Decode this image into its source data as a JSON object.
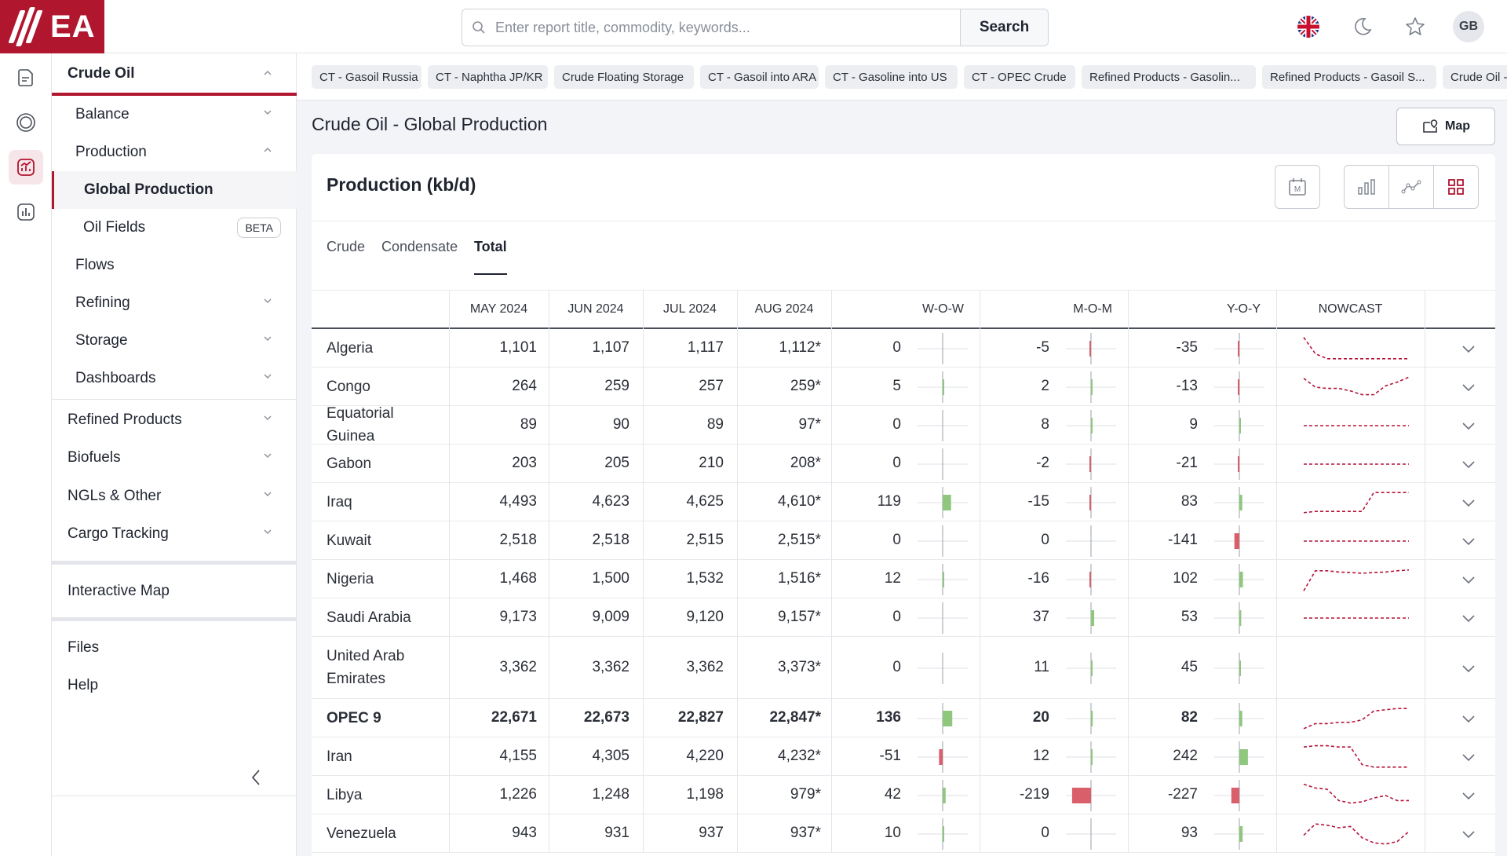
{
  "header": {
    "logo_text": "EA",
    "search_placeholder": "Enter report title, commodity, keywords...",
    "search_label": "Search",
    "avatar": "GB",
    "icons": [
      "uk-flag-icon",
      "moon-icon",
      "star-icon"
    ]
  },
  "rail": [
    "document-icon",
    "target-icon",
    "analytics-icon",
    "bar-chart-icon"
  ],
  "nav": {
    "section": "Crude Oil",
    "items": [
      {
        "label": "Balance",
        "chevron": "down"
      },
      {
        "label": "Production",
        "chevron": "up"
      },
      {
        "label": "Global Production",
        "active": true
      },
      {
        "label": "Oil Fields",
        "badge": "BETA"
      },
      {
        "label": "Flows"
      },
      {
        "label": "Refining",
        "chevron": "down"
      },
      {
        "label": "Storage",
        "chevron": "down"
      },
      {
        "label": "Dashboards",
        "chevron": "down"
      }
    ],
    "sections": [
      "Refined Products",
      "Biofuels",
      "NGLs & Other",
      "Cargo Tracking"
    ],
    "interactive_map": "Interactive Map",
    "files": "Files",
    "help": "Help"
  },
  "chips": [
    "CT - Gasoil Russia",
    "CT - Naphtha JP/KR",
    "Crude Floating Storage",
    "CT - Gasoil into ARA",
    "CT - Gasoline into US",
    "CT - OPEC Crude",
    "Refined Products - Gasolin...",
    "Refined Products - Gasoil S...",
    "Crude Oil -"
  ],
  "page": {
    "title": "Crude Oil - Global Production",
    "map_button": "Map",
    "card_title": "Production (kb/d)",
    "tabs": [
      "Crude",
      "Condensate",
      "Total"
    ],
    "active_tab": "Total"
  },
  "table": {
    "columns": [
      "MAY 2024",
      "JUN 2024",
      "JUL 2024",
      "AUG 2024",
      "W-O-W",
      "M-O-M",
      "Y-O-Y",
      "NOWCAST"
    ],
    "rows": [
      {
        "country": "Algeria",
        "values": [
          "1,101",
          "1,107",
          "1,117",
          "1,112*"
        ],
        "wow": 0,
        "mom": -5,
        "yoy": -35,
        "nowcast": [
          0.95,
          0.3,
          0.1,
          0.1,
          0.1,
          0.1,
          0.1,
          0.1,
          0.1,
          0.1
        ]
      },
      {
        "country": "Congo",
        "values": [
          "264",
          "259",
          "257",
          "259*"
        ],
        "wow": 5,
        "mom": 2,
        "yoy": -13,
        "nowcast": [
          0.85,
          0.5,
          0.45,
          0.45,
          0.35,
          0.2,
          0.2,
          0.55,
          0.7,
          0.9
        ]
      },
      {
        "country": "Equatorial Guinea",
        "values": [
          "89",
          "90",
          "89",
          "97*"
        ],
        "wow": 0,
        "mom": 8,
        "yoy": 9,
        "nowcast": [
          0.5,
          0.5,
          0.5,
          0.5,
          0.5,
          0.5,
          0.5,
          0.5,
          0.5,
          0.5
        ]
      },
      {
        "country": "Gabon",
        "values": [
          "203",
          "205",
          "210",
          "208*"
        ],
        "wow": 0,
        "mom": -2,
        "yoy": -21,
        "nowcast": [
          0.5,
          0.5,
          0.5,
          0.5,
          0.5,
          0.5,
          0.5,
          0.5,
          0.5,
          0.5
        ]
      },
      {
        "country": "Iraq",
        "values": [
          "4,493",
          "4,623",
          "4,625",
          "4,610*"
        ],
        "wow": 119,
        "mom": -15,
        "yoy": 83,
        "nowcast": [
          0.1,
          0.15,
          0.15,
          0.15,
          0.15,
          0.15,
          0.9,
          0.9,
          0.9,
          0.9
        ]
      },
      {
        "country": "Kuwait",
        "values": [
          "2,518",
          "2,518",
          "2,515",
          "2,515*"
        ],
        "wow": 0,
        "mom": 0,
        "yoy": -141,
        "nowcast": [
          0.5,
          0.5,
          0.5,
          0.5,
          0.5,
          0.5,
          0.5,
          0.5,
          0.5,
          0.5
        ]
      },
      {
        "country": "Nigeria",
        "values": [
          "1,468",
          "1,500",
          "1,532",
          "1,516*"
        ],
        "wow": 12,
        "mom": -16,
        "yoy": 102,
        "nowcast": [
          0.05,
          0.85,
          0.85,
          0.8,
          0.78,
          0.75,
          0.78,
          0.8,
          0.85,
          0.88
        ]
      },
      {
        "country": "Saudi Arabia",
        "values": [
          "9,173",
          "9,009",
          "9,120",
          "9,157*"
        ],
        "wow": 0,
        "mom": 37,
        "yoy": 53,
        "nowcast": [
          0.5,
          0.5,
          0.5,
          0.5,
          0.5,
          0.5,
          0.5,
          0.5,
          0.5,
          0.5
        ]
      },
      {
        "country": "United Arab Emirates",
        "values": [
          "3,362",
          "3,362",
          "3,362",
          "3,373*"
        ],
        "wow": 0,
        "mom": 11,
        "yoy": 45,
        "nowcast": [],
        "tall": true
      },
      {
        "country": "OPEC 9",
        "values": [
          "22,671",
          "22,673",
          "22,827",
          "22,847*"
        ],
        "wow": 136,
        "mom": 20,
        "yoy": 82,
        "nowcast": [
          0.1,
          0.3,
          0.3,
          0.35,
          0.35,
          0.45,
          0.8,
          0.85,
          0.9,
          0.9
        ],
        "bold": true
      },
      {
        "country": "Iran",
        "values": [
          "4,155",
          "4,305",
          "4,220",
          "4,232*"
        ],
        "wow": -51,
        "mom": 12,
        "yoy": 242,
        "nowcast": [
          0.9,
          0.95,
          0.95,
          0.9,
          0.9,
          0.2,
          0.1,
          0.1,
          0.1,
          0.1
        ]
      },
      {
        "country": "Libya",
        "values": [
          "1,226",
          "1,248",
          "1,198",
          "979*"
        ],
        "wow": 42,
        "mom": -219,
        "yoy": -227,
        "nowcast": [
          0.95,
          0.8,
          0.75,
          0.3,
          0.2,
          0.25,
          0.4,
          0.5,
          0.3,
          0.3
        ]
      },
      {
        "country": "Venezuela",
        "values": [
          "943",
          "931",
          "937",
          "937*"
        ],
        "wow": 10,
        "mom": 0,
        "yoy": 93,
        "nowcast": [
          0.45,
          0.9,
          0.85,
          0.75,
          0.8,
          0.35,
          0.15,
          0.1,
          0.2,
          0.6
        ]
      }
    ]
  },
  "colors": {
    "accent": "#b1162f",
    "positive": "#8fc77d",
    "negative": "#d9606a",
    "nowcast": "#b5143a"
  }
}
